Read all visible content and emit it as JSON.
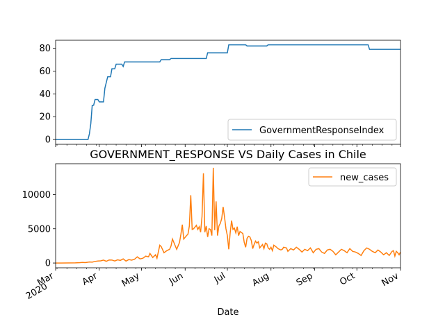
{
  "chart_data": [
    {
      "type": "line",
      "title": "",
      "xlabel": "",
      "ylabel": "",
      "x_domain": [
        "2020-03-01",
        "2020-11-01"
      ],
      "ylim": [
        -4.2,
        87
      ],
      "yticks": [
        0,
        20,
        40,
        60,
        80
      ],
      "legend": {
        "position": "lower-right"
      },
      "color": "#1f77b4",
      "series": [
        {
          "name": "GovernmentResponseIndex",
          "points": [
            [
              "2020-03-01",
              0
            ],
            [
              "2020-03-24",
              0
            ],
            [
              "2020-03-25",
              5
            ],
            [
              "2020-03-26",
              14
            ],
            [
              "2020-03-27",
              30
            ],
            [
              "2020-03-28",
              30
            ],
            [
              "2020-03-29",
              35
            ],
            [
              "2020-03-31",
              35
            ],
            [
              "2020-04-01",
              33
            ],
            [
              "2020-04-04",
              33
            ],
            [
              "2020-04-05",
              45
            ],
            [
              "2020-04-06",
              50
            ],
            [
              "2020-04-07",
              55
            ],
            [
              "2020-04-09",
              55
            ],
            [
              "2020-04-10",
              62
            ],
            [
              "2020-04-12",
              62
            ],
            [
              "2020-04-13",
              66
            ],
            [
              "2020-04-17",
              66
            ],
            [
              "2020-04-18",
              64
            ],
            [
              "2020-04-19",
              68
            ],
            [
              "2020-05-14",
              68
            ],
            [
              "2020-05-15",
              70
            ],
            [
              "2020-05-21",
              70
            ],
            [
              "2020-05-22",
              71
            ],
            [
              "2020-06-16",
              71
            ],
            [
              "2020-06-17",
              76
            ],
            [
              "2020-07-01",
              76
            ],
            [
              "2020-07-02",
              83
            ],
            [
              "2020-07-14",
              83
            ],
            [
              "2020-07-15",
              82
            ],
            [
              "2020-07-29",
              82
            ],
            [
              "2020-07-30",
              83
            ],
            [
              "2020-10-09",
              83
            ],
            [
              "2020-10-10",
              79
            ],
            [
              "2020-11-01",
              79
            ]
          ]
        }
      ]
    },
    {
      "type": "line",
      "title": "GOVERNMENT_RESPONSE VS Daily Cases in Chile",
      "xlabel": "Date",
      "ylabel": "",
      "x_domain": [
        "2020-03-01",
        "2020-11-01"
      ],
      "ylim": [
        -700,
        14500
      ],
      "yticks": [
        0,
        5000,
        10000
      ],
      "xticks": [
        "Mar\n2020",
        "Apr",
        "May",
        "Jun",
        "Jul",
        "Aug",
        "Sep",
        "Oct",
        "Nov"
      ],
      "legend": {
        "position": "upper-right"
      },
      "color": "#ff7f0e",
      "series": [
        {
          "name": "new_cases",
          "points": [
            [
              "2020-03-01",
              0
            ],
            [
              "2020-03-05",
              1
            ],
            [
              "2020-03-10",
              5
            ],
            [
              "2020-03-15",
              20
            ],
            [
              "2020-03-18",
              50
            ],
            [
              "2020-03-20",
              80
            ],
            [
              "2020-03-22",
              60
            ],
            [
              "2020-03-25",
              150
            ],
            [
              "2020-03-27",
              120
            ],
            [
              "2020-03-29",
              230
            ],
            [
              "2020-03-31",
              290
            ],
            [
              "2020-04-02",
              310
            ],
            [
              "2020-04-04",
              420
            ],
            [
              "2020-04-06",
              250
            ],
            [
              "2020-04-08",
              440
            ],
            [
              "2020-04-10",
              430
            ],
            [
              "2020-04-12",
              290
            ],
            [
              "2020-04-14",
              460
            ],
            [
              "2020-04-16",
              380
            ],
            [
              "2020-04-18",
              600
            ],
            [
              "2020-04-20",
              280
            ],
            [
              "2020-04-22",
              500
            ],
            [
              "2020-04-24",
              420
            ],
            [
              "2020-04-26",
              540
            ],
            [
              "2020-04-28",
              900
            ],
            [
              "2020-04-30",
              600
            ],
            [
              "2020-05-02",
              700
            ],
            [
              "2020-05-04",
              1000
            ],
            [
              "2020-05-06",
              900
            ],
            [
              "2020-05-07",
              1400
            ],
            [
              "2020-05-09",
              800
            ],
            [
              "2020-05-11",
              1200
            ],
            [
              "2020-05-12",
              700
            ],
            [
              "2020-05-14",
              2600
            ],
            [
              "2020-05-15",
              2400
            ],
            [
              "2020-05-17",
              1500
            ],
            [
              "2020-05-19",
              1800
            ],
            [
              "2020-05-21",
              2000
            ],
            [
              "2020-05-22",
              2500
            ],
            [
              "2020-05-23",
              3500
            ],
            [
              "2020-05-24",
              3000
            ],
            [
              "2020-05-26",
              2000
            ],
            [
              "2020-05-28",
              3000
            ],
            [
              "2020-05-29",
              4200
            ],
            [
              "2020-05-30",
              5600
            ],
            [
              "2020-05-31",
              3500
            ],
            [
              "2020-06-02",
              4000
            ],
            [
              "2020-06-03",
              4200
            ],
            [
              "2020-06-04",
              5400
            ],
            [
              "2020-06-05",
              9900
            ],
            [
              "2020-06-06",
              4900
            ],
            [
              "2020-06-07",
              5000
            ],
            [
              "2020-06-09",
              5500
            ],
            [
              "2020-06-10",
              4900
            ],
            [
              "2020-06-11",
              5300
            ],
            [
              "2020-06-12",
              4500
            ],
            [
              "2020-06-13",
              6800
            ],
            [
              "2020-06-14",
              13100
            ],
            [
              "2020-06-15",
              4500
            ],
            [
              "2020-06-16",
              5400
            ],
            [
              "2020-06-17",
              3800
            ],
            [
              "2020-06-18",
              5000
            ],
            [
              "2020-06-19",
              4900
            ],
            [
              "2020-06-20",
              4000
            ],
            [
              "2020-06-21",
              13900
            ],
            [
              "2020-06-22",
              4800
            ],
            [
              "2020-06-23",
              9000
            ],
            [
              "2020-06-24",
              4000
            ],
            [
              "2020-06-25",
              5400
            ],
            [
              "2020-06-26",
              5800
            ],
            [
              "2020-06-27",
              6500
            ],
            [
              "2020-06-28",
              8200
            ],
            [
              "2020-06-29",
              6700
            ],
            [
              "2020-06-30",
              5000
            ],
            [
              "2020-07-01",
              4000
            ],
            [
              "2020-07-02",
              2000
            ],
            [
              "2020-07-03",
              4400
            ],
            [
              "2020-07-04",
              6200
            ],
            [
              "2020-07-05",
              4900
            ],
            [
              "2020-07-06",
              5100
            ],
            [
              "2020-07-07",
              4400
            ],
            [
              "2020-07-08",
              5300
            ],
            [
              "2020-07-09",
              4000
            ],
            [
              "2020-07-10",
              4600
            ],
            [
              "2020-07-12",
              4300
            ],
            [
              "2020-07-13",
              3000
            ],
            [
              "2020-07-14",
              2300
            ],
            [
              "2020-07-15",
              3600
            ],
            [
              "2020-07-16",
              3900
            ],
            [
              "2020-07-17",
              3800
            ],
            [
              "2020-07-18",
              3300
            ],
            [
              "2020-07-19",
              2100
            ],
            [
              "2020-07-20",
              2700
            ],
            [
              "2020-07-21",
              3200
            ],
            [
              "2020-07-22",
              2900
            ],
            [
              "2020-07-23",
              3100
            ],
            [
              "2020-07-24",
              2200
            ],
            [
              "2020-07-26",
              2700
            ],
            [
              "2020-07-27",
              2100
            ],
            [
              "2020-07-28",
              2900
            ],
            [
              "2020-07-29",
              2800
            ],
            [
              "2020-07-30",
              2200
            ],
            [
              "2020-07-31",
              2000
            ],
            [
              "2020-08-01",
              2300
            ],
            [
              "2020-08-02",
              1800
            ],
            [
              "2020-08-03",
              2600
            ],
            [
              "2020-08-05",
              2300
            ],
            [
              "2020-08-06",
              2100
            ],
            [
              "2020-08-08",
              1900
            ],
            [
              "2020-08-09",
              2000
            ],
            [
              "2020-08-10",
              2300
            ],
            [
              "2020-08-12",
              2200
            ],
            [
              "2020-08-13",
              1700
            ],
            [
              "2020-08-15",
              2100
            ],
            [
              "2020-08-17",
              1900
            ],
            [
              "2020-08-19",
              2300
            ],
            [
              "2020-08-21",
              2000
            ],
            [
              "2020-08-23",
              1600
            ],
            [
              "2020-08-25",
              2000
            ],
            [
              "2020-08-27",
              1800
            ],
            [
              "2020-08-29",
              2200
            ],
            [
              "2020-08-31",
              1500
            ],
            [
              "2020-09-02",
              2000
            ],
            [
              "2020-09-04",
              2100
            ],
            [
              "2020-09-06",
              1600
            ],
            [
              "2020-09-08",
              1400
            ],
            [
              "2020-09-10",
              1900
            ],
            [
              "2020-09-12",
              2000
            ],
            [
              "2020-09-14",
              1700
            ],
            [
              "2020-09-16",
              1200
            ],
            [
              "2020-09-18",
              1600
            ],
            [
              "2020-09-20",
              2000
            ],
            [
              "2020-09-22",
              1800
            ],
            [
              "2020-09-24",
              1500
            ],
            [
              "2020-09-26",
              2100
            ],
            [
              "2020-09-28",
              1700
            ],
            [
              "2020-09-30",
              1600
            ],
            [
              "2020-10-02",
              1400
            ],
            [
              "2020-10-04",
              1100
            ],
            [
              "2020-10-06",
              1800
            ],
            [
              "2020-10-08",
              2200
            ],
            [
              "2020-10-10",
              2000
            ],
            [
              "2020-10-12",
              1700
            ],
            [
              "2020-10-14",
              1500
            ],
            [
              "2020-10-16",
              1900
            ],
            [
              "2020-10-18",
              1600
            ],
            [
              "2020-10-20",
              1200
            ],
            [
              "2020-10-22",
              1500
            ],
            [
              "2020-10-24",
              1100
            ],
            [
              "2020-10-26",
              1700
            ],
            [
              "2020-10-27",
              1800
            ],
            [
              "2020-10-28",
              1000
            ],
            [
              "2020-10-29",
              1700
            ],
            [
              "2020-10-30",
              1500
            ],
            [
              "2020-10-31",
              1200
            ],
            [
              "2020-11-01",
              1600
            ]
          ]
        }
      ]
    }
  ]
}
